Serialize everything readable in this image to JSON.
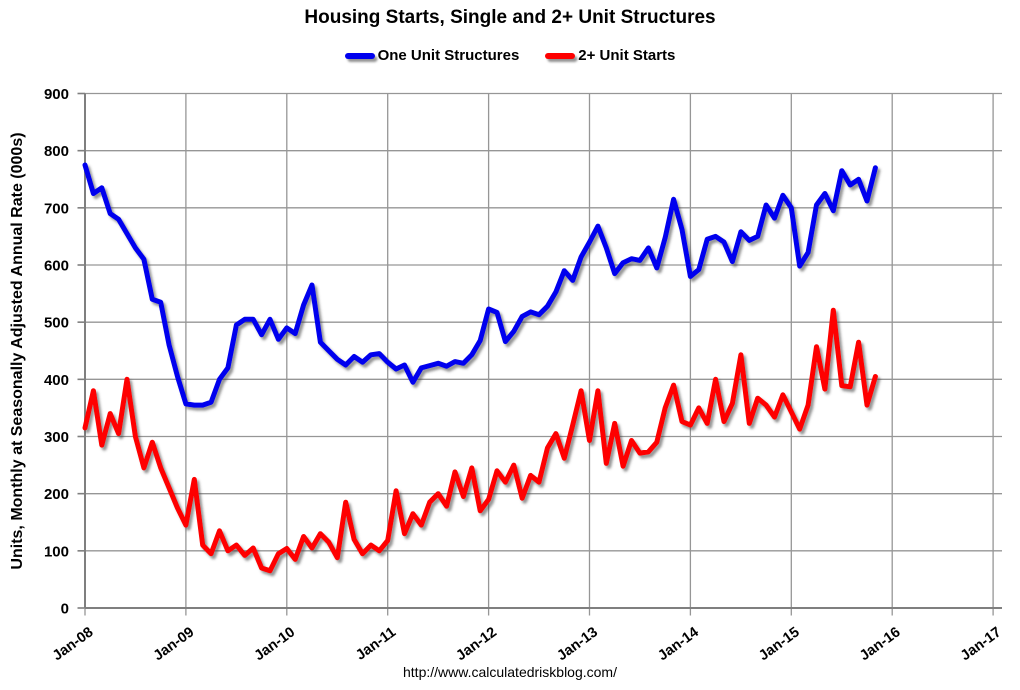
{
  "header": {
    "title": "Housing Starts, Single and 2+ Unit Structures"
  },
  "footer": {
    "url": "http://www.calculatedriskblog.com/"
  },
  "colors": {
    "background": "#ffffff",
    "grid": "#969696",
    "axis": "#7f7f7f",
    "text": "#000000",
    "one_unit_line": "#0000ee",
    "two_plus_line": "#fe0000"
  },
  "chart_data": {
    "type": "line",
    "title": "Housing Starts, Single and 2+ Unit Structures",
    "ylabel": "Units, Monthly at Seasonally Adjusted Annual Rate (000s)",
    "xlabel": "",
    "ylim": [
      0,
      900
    ],
    "ytick_interval": 100,
    "yticks": [
      0,
      100,
      200,
      300,
      400,
      500,
      600,
      700,
      800,
      900
    ],
    "xticks": [
      "Jan-08",
      "Jan-09",
      "Jan-10",
      "Jan-11",
      "Jan-12",
      "Jan-13",
      "Jan-14",
      "Jan-15",
      "Jan-16",
      "Jan-17"
    ],
    "x_start": "Jan-08",
    "x_end": "Nov-15",
    "months_per_xtick": 12,
    "x_total_months": 108,
    "grid": true,
    "legend_position": "top-center",
    "series": [
      {
        "name": "One Unit Structures",
        "color": "#0000ee",
        "values": [
          775,
          725,
          735,
          690,
          680,
          655,
          630,
          610,
          540,
          535,
          460,
          405,
          357,
          355,
          355,
          360,
          400,
          420,
          495,
          505,
          505,
          478,
          505,
          470,
          490,
          480,
          530,
          565,
          465,
          450,
          435,
          425,
          440,
          430,
          443,
          445,
          430,
          418,
          425,
          395,
          420,
          424,
          428,
          423,
          431,
          428,
          443,
          468,
          523,
          517,
          466,
          484,
          510,
          518,
          513,
          528,
          553,
          590,
          573,
          614,
          640,
          668,
          630,
          585,
          604,
          611,
          608,
          630,
          595,
          648,
          715,
          662,
          580,
          592,
          645,
          650,
          640,
          606,
          658,
          643,
          650,
          705,
          682,
          722,
          700,
          598,
          622,
          705,
          725,
          695,
          765,
          740,
          750,
          712,
          770
        ]
      },
      {
        "name": "2+ Unit Starts",
        "color": "#fe0000",
        "values": [
          315,
          380,
          285,
          340,
          305,
          400,
          300,
          245,
          290,
          245,
          210,
          175,
          145,
          225,
          110,
          95,
          135,
          100,
          110,
          92,
          105,
          70,
          65,
          95,
          104,
          85,
          125,
          105,
          130,
          115,
          88,
          185,
          120,
          95,
          110,
          100,
          118,
          205,
          130,
          165,
          145,
          185,
          200,
          178,
          238,
          195,
          245,
          170,
          190,
          240,
          220,
          250,
          192,
          232,
          220,
          280,
          305,
          262,
          320,
          380,
          293,
          380,
          253,
          323,
          248,
          293,
          271,
          273,
          290,
          350,
          390,
          326,
          320,
          350,
          323,
          400,
          326,
          358,
          443,
          323,
          367,
          355,
          334,
          373,
          343,
          313,
          355,
          457,
          383,
          521,
          389,
          387,
          465,
          355,
          405
        ]
      }
    ]
  }
}
